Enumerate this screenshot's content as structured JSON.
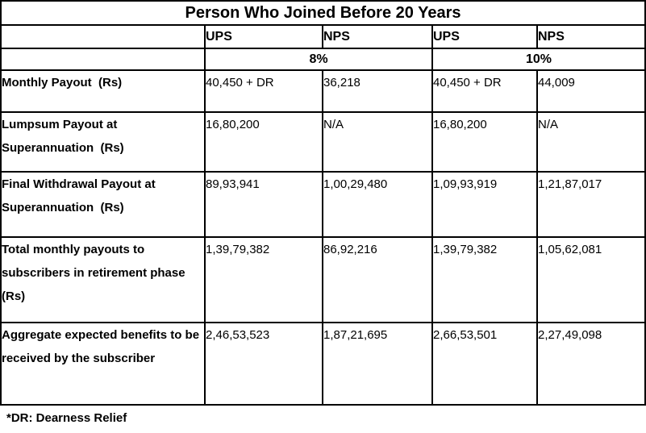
{
  "table": {
    "title": "Person Who Joined Before 20 Years",
    "scheme_headers": [
      "UPS",
      "NPS",
      "UPS",
      "NPS"
    ],
    "rate_groups": [
      {
        "label": "8%"
      },
      {
        "label": "10%"
      }
    ],
    "rows": [
      {
        "label": "Monthly Payout  (Rs)",
        "values": [
          "40,450 + DR",
          "36,218",
          "40,450 + DR",
          "44,009"
        ]
      },
      {
        "label": "Lumpsum Payout at Superannuation  (Rs)",
        "values": [
          "16,80,200",
          "N/A",
          "16,80,200",
          "N/A"
        ]
      },
      {
        "label": "Final Withdrawal Payout at Superannuation  (Rs)",
        "values": [
          "89,93,941",
          "1,00,29,480",
          "1,09,93,919",
          "1,21,87,017"
        ]
      },
      {
        "label": "Total monthly payouts to subscribers in retirement phase  (Rs)",
        "values": [
          "1,39,79,382",
          "86,92,216",
          "1,39,79,382",
          "1,05,62,081"
        ]
      },
      {
        "label": "Aggregate expected benefits to be received by the subscriber",
        "values": [
          "2,46,53,523",
          "1,87,21,695",
          "2,66,53,501",
          "2,27,49,098"
        ]
      }
    ],
    "footnote": "*DR: Dearness Relief"
  },
  "colors": {
    "border": "#000000",
    "text": "#000000",
    "background": "#ffffff"
  }
}
